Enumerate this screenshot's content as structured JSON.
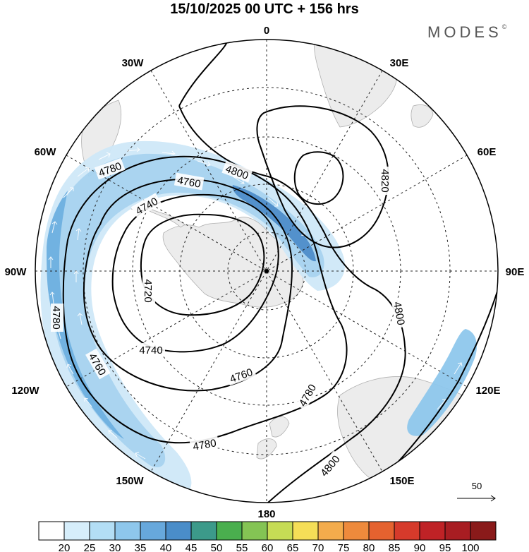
{
  "title": "15/10/2025  00 UTC  + 156 hrs",
  "brand": {
    "name": "MODES",
    "mark": "©"
  },
  "longitude_labels": [
    "0",
    "30E",
    "60E",
    "90E",
    "120E",
    "150E",
    "180",
    "150W",
    "120W",
    "90W",
    "60W",
    "30W"
  ],
  "contour_labels": [
    "4720",
    "4740",
    "4740",
    "4760",
    "4760",
    "4760",
    "4780",
    "4780",
    "4780",
    "4780",
    "4800",
    "4800",
    "4800",
    "4820"
  ],
  "wind_reference": {
    "label": "50"
  },
  "colorbar": {
    "ticks": [
      "20",
      "25",
      "30",
      "35",
      "40",
      "45",
      "50",
      "55",
      "60",
      "65",
      "70",
      "75",
      "80",
      "85",
      "90",
      "95",
      "100"
    ],
    "colors": [
      "#ffffff",
      "#d6eefb",
      "#b3def5",
      "#8ec7ec",
      "#67a8dc",
      "#4a8dc9",
      "#3c9a8a",
      "#4aaf4e",
      "#84c454",
      "#c6dc55",
      "#f5de57",
      "#f4ac4c",
      "#ee8a3c",
      "#e5622f",
      "#d63a2b",
      "#bf2226",
      "#a81d22",
      "#8a1a1a"
    ]
  },
  "colors": {
    "land": "#ececec",
    "jet_light": "#cfe8f8",
    "jet_mid": "#a6d2f0",
    "jet_dark": "#6aaee0",
    "jet_core": "#4a8cca"
  }
}
